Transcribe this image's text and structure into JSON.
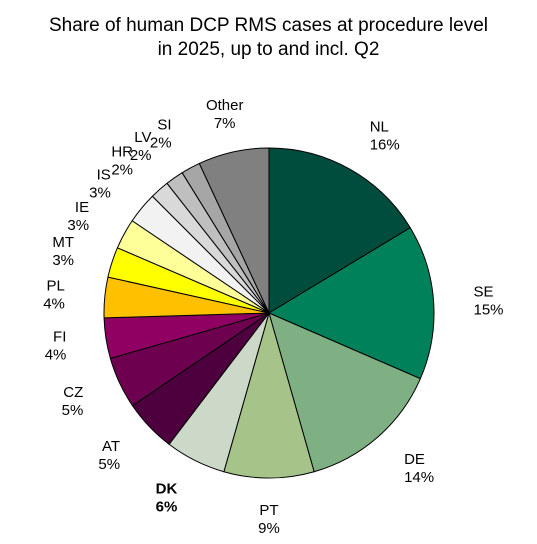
{
  "chart_data": {
    "type": "pie",
    "title_line1": "Share of human DCP RMS cases at procedure level",
    "title_line2": "in 2025, up to and incl. Q2",
    "slices": [
      {
        "label": "NL",
        "pct": "16%",
        "value": 16.5,
        "color": "#004d3d"
      },
      {
        "label": "SE",
        "pct": "15%",
        "value": 15.3,
        "color": "#00815a"
      },
      {
        "label": "DE",
        "pct": "14%",
        "value": 14.2,
        "color": "#7fb084"
      },
      {
        "label": "PT",
        "pct": "9%",
        "value": 8.9,
        "color": "#a6c48a"
      },
      {
        "label": "DK",
        "pct": "6%",
        "value": 6.0,
        "color": "#ccd9c8",
        "bold": true
      },
      {
        "label": "AT",
        "pct": "5%",
        "value": 5.2,
        "color": "#4e003e"
      },
      {
        "label": "CZ",
        "pct": "5%",
        "value": 5.1,
        "color": "#6e0050"
      },
      {
        "label": "FI",
        "pct": "4%",
        "value": 4.0,
        "color": "#8f0062"
      },
      {
        "label": "PL",
        "pct": "4%",
        "value": 4.0,
        "color": "#ffc000"
      },
      {
        "label": "MT",
        "pct": "3%",
        "value": 3.0,
        "color": "#ffff00"
      },
      {
        "label": "IE",
        "pct": "3%",
        "value": 3.0,
        "color": "#ffff99"
      },
      {
        "label": "IS",
        "pct": "3%",
        "value": 3.1,
        "color": "#f2f2f2"
      },
      {
        "label": "HR",
        "pct": "2%",
        "value": 1.9,
        "color": "#d9d9d9"
      },
      {
        "label": "LV",
        "pct": "2%",
        "value": 1.8,
        "color": "#bfbfbf"
      },
      {
        "label": "SI",
        "pct": "2%",
        "value": 1.9,
        "color": "#a6a6a6"
      },
      {
        "label": "Other",
        "pct": "7%",
        "value": 7.0,
        "color": "#808080"
      }
    ]
  }
}
